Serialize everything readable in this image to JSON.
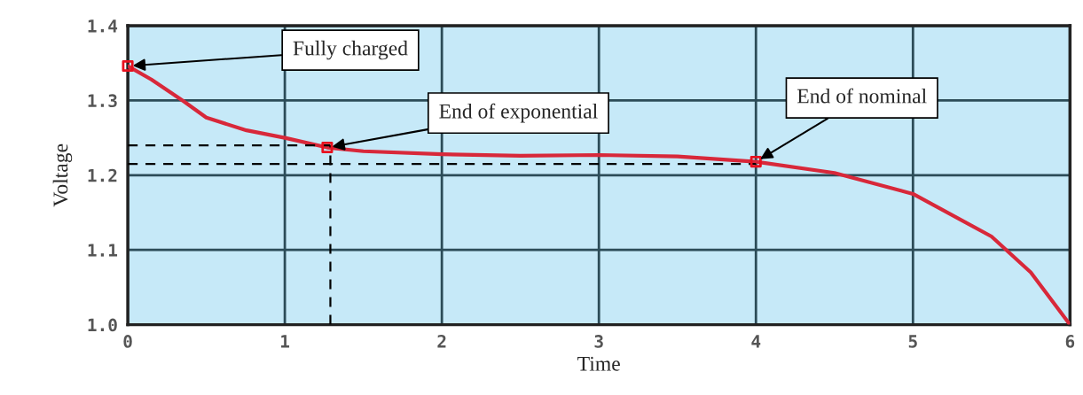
{
  "chart_data": {
    "type": "line",
    "xlabel": "Time",
    "ylabel": "Voltage",
    "xlim": [
      0,
      6
    ],
    "ylim": [
      1.0,
      1.4
    ],
    "xticks": [
      0,
      1,
      2,
      3,
      4,
      5,
      6
    ],
    "yticks": [
      {
        "value": 1.0,
        "label": "1.0"
      },
      {
        "value": 1.1,
        "label": "1.1"
      },
      {
        "value": 1.2,
        "label": "1.2"
      },
      {
        "value": 1.3,
        "label": "1.3"
      },
      {
        "value": 1.4,
        "label": "1.4"
      }
    ],
    "grid": true,
    "series": [
      {
        "color": "#d8283a",
        "x": [
          0,
          0.15,
          0.355,
          0.5,
          0.756,
          1,
          1.27,
          1.5,
          2,
          2.5,
          3,
          3.5,
          4,
          4.5,
          5,
          5.5,
          5.75,
          6
        ],
        "values": [
          1.346,
          1.328,
          1.299,
          1.277,
          1.26,
          1.25,
          1.237,
          1.232,
          1.228,
          1.226,
          1.227,
          1.225,
          1.218,
          1.203,
          1.175,
          1.118,
          1.07,
          1.0
        ]
      },
      {
        "type": "line",
        "color": "#000000",
        "line_style": "dashed",
        "x": [
          0,
          1.29
        ],
        "values": [
          1.24,
          1.24
        ]
      },
      {
        "type": "line",
        "color": "#000000",
        "line_style": "dashed",
        "x": [
          0,
          4
        ],
        "values": [
          1.215,
          1.215
        ]
      },
      {
        "type": "line",
        "color": "#000000",
        "line_style": "dashed",
        "x": [
          1.29,
          1.29
        ],
        "values": [
          1.0,
          1.24
        ]
      },
      {
        "type": "scatter",
        "color": "#e8101e",
        "marker": "square",
        "x": [
          0,
          1.27,
          4
        ],
        "values": [
          1.346,
          1.237,
          1.218
        ]
      }
    ],
    "annotations": [
      {
        "text": "Fully charged",
        "x": 0,
        "y": 1.346
      },
      {
        "text": "End of exponential",
        "x": 1.27,
        "y": 1.237
      },
      {
        "text": "End of nominal",
        "x": 4,
        "y": 1.218
      }
    ]
  }
}
